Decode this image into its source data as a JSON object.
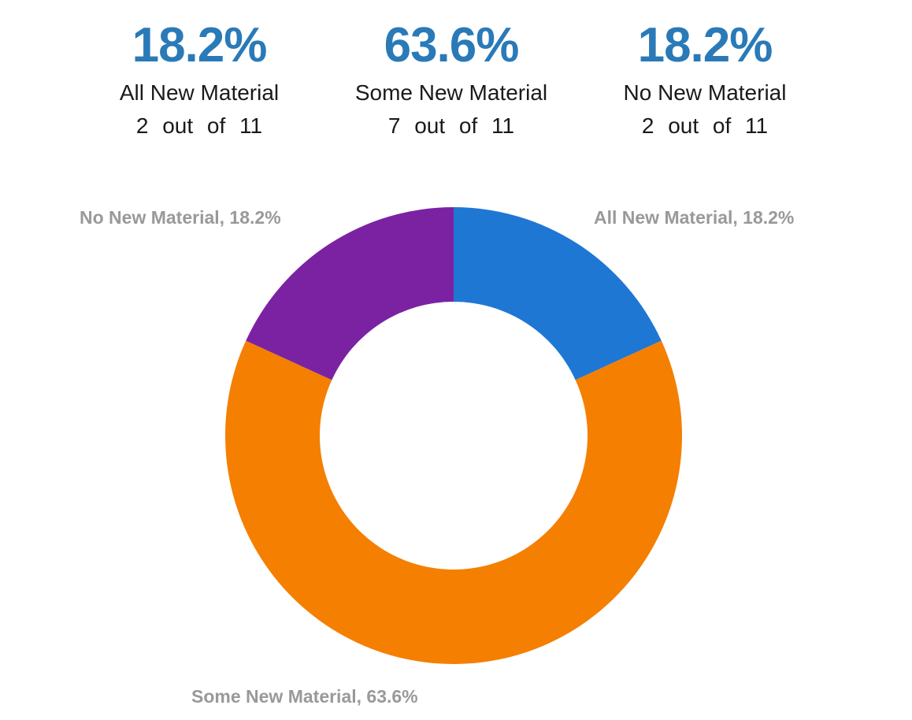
{
  "summary": [
    {
      "percent": "18.2%",
      "label": "All New Material",
      "count": "2 out of 11"
    },
    {
      "percent": "63.6%",
      "label": "Some New Material",
      "count": "7 out of 11"
    },
    {
      "percent": "18.2%",
      "label": "No New Material",
      "count": "2 out of 11"
    }
  ],
  "data_labels": {
    "all_new": "All New Material, 18.2%",
    "some_new": "Some New Material, 63.6%",
    "no_new": "No New Material, 18.2%"
  },
  "colors": {
    "all_new": "#1f77d4",
    "some_new": "#f57f00",
    "no_new": "#7b22a3",
    "summary_percent": "#2a7ab8",
    "data_label": "#999999"
  },
  "chart_data": {
    "type": "pie",
    "variant": "donut",
    "title": "",
    "categories": [
      "All New Material",
      "Some New Material",
      "No New Material"
    ],
    "values": [
      2,
      7,
      2
    ],
    "percentages": [
      18.2,
      63.6,
      18.2
    ],
    "total": 11,
    "colors": [
      "#1f77d4",
      "#f57f00",
      "#7b22a3"
    ],
    "start_angle": "12 o'clock, clockwise",
    "legend": "none (data labels outside slices)"
  }
}
